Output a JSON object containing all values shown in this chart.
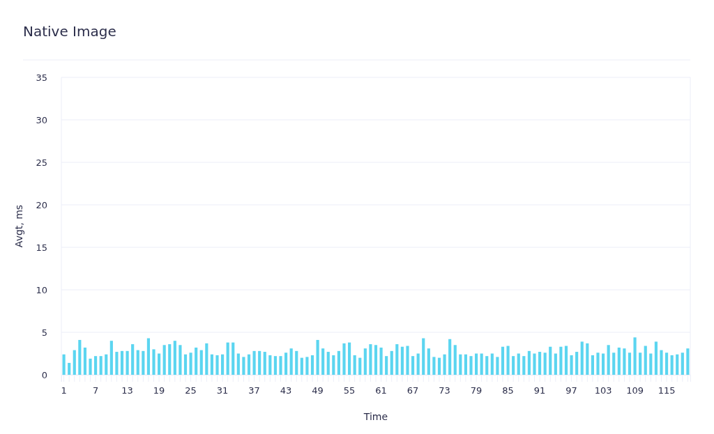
{
  "chart_data": {
    "type": "bar",
    "title": "Native Image",
    "xlabel": "Time",
    "ylabel": "Avgt, ms",
    "categories": [
      "1",
      null,
      null,
      null,
      null,
      null,
      "7",
      null,
      null,
      null,
      null,
      null,
      "13",
      null,
      null,
      null,
      null,
      null,
      "19",
      null,
      null,
      null,
      null,
      null,
      "25",
      null,
      null,
      null,
      null,
      null,
      "31",
      null,
      null,
      null,
      null,
      null,
      "37",
      null,
      null,
      null,
      null,
      null,
      "43",
      null,
      null,
      null,
      null,
      null,
      "49",
      null,
      null,
      null,
      null,
      null,
      "55",
      null,
      null,
      null,
      null,
      null,
      "61",
      null,
      null,
      null,
      null,
      null,
      "67",
      null,
      null,
      null,
      null,
      null,
      "73",
      null,
      null,
      null,
      null,
      null,
      "79",
      null,
      null,
      null,
      null,
      null,
      "85",
      null,
      null,
      null,
      null,
      null,
      "91",
      null,
      null,
      null,
      null,
      null,
      "97",
      null,
      null,
      null,
      null,
      null,
      "103",
      null,
      null,
      null,
      null,
      null,
      "109",
      null,
      null,
      null,
      null,
      null,
      "115",
      null,
      null,
      null,
      null
    ],
    "values": [
      2.4,
      1.4,
      2.9,
      4.1,
      3.2,
      1.9,
      2.2,
      2.2,
      2.4,
      4.0,
      2.7,
      2.8,
      2.8,
      3.6,
      2.9,
      2.8,
      4.3,
      3.0,
      2.5,
      3.5,
      3.6,
      4.0,
      3.5,
      2.4,
      2.6,
      3.2,
      2.9,
      3.7,
      2.4,
      2.3,
      2.4,
      3.8,
      3.8,
      2.5,
      2.1,
      2.4,
      2.8,
      2.8,
      2.7,
      2.3,
      2.2,
      2.2,
      2.6,
      3.1,
      2.8,
      2.0,
      2.1,
      2.3,
      4.1,
      3.1,
      2.7,
      2.3,
      2.8,
      3.7,
      3.8,
      2.3,
      2.0,
      3.1,
      3.6,
      3.5,
      3.2,
      2.2,
      2.8,
      3.6,
      3.3,
      3.4,
      2.2,
      2.5,
      4.3,
      3.1,
      2.1,
      2.0,
      2.4,
      4.2,
      3.5,
      2.4,
      2.4,
      2.2,
      2.5,
      2.5,
      2.2,
      2.5,
      2.1,
      3.3,
      3.4,
      2.2,
      2.5,
      2.2,
      2.8,
      2.5,
      2.7,
      2.6,
      3.3,
      2.5,
      3.3,
      3.4,
      2.3,
      2.7,
      3.9,
      3.7,
      2.3,
      2.6,
      2.5,
      3.5,
      2.6,
      3.2,
      3.1,
      2.6,
      4.4,
      2.6,
      3.4,
      2.5,
      3.9,
      2.9,
      2.6,
      2.3,
      2.4,
      2.6,
      3.1
    ],
    "color": "#5bd5f0",
    "ylim": [
      0,
      35
    ],
    "yticks": [
      0,
      5,
      10,
      15,
      20,
      25,
      30,
      35
    ],
    "grid": "y"
  }
}
